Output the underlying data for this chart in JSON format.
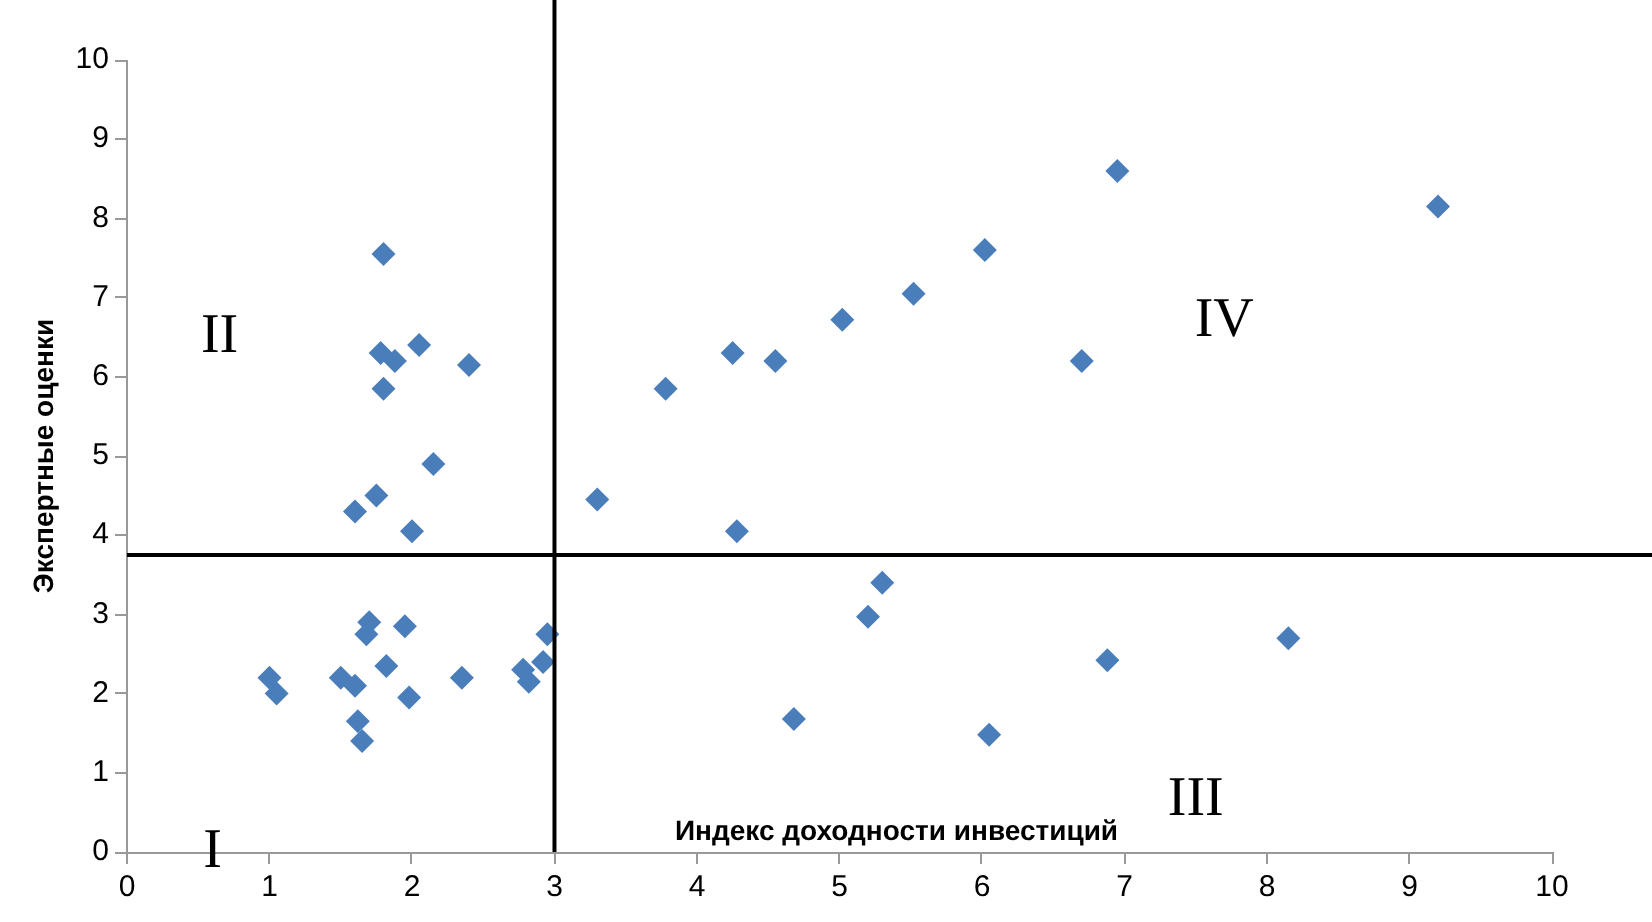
{
  "chart_data": {
    "type": "scatter",
    "xlabel": "Индекс доходности инвестиций",
    "ylabel": "Экспертные оценки",
    "xlim": [
      0,
      10
    ],
    "ylim": [
      0,
      10
    ],
    "xticks": [
      0,
      1,
      2,
      3,
      4,
      5,
      6,
      7,
      8,
      9,
      10
    ],
    "yticks": [
      0,
      1,
      2,
      3,
      4,
      5,
      6,
      7,
      8,
      9,
      10
    ],
    "grid": false,
    "legend": false,
    "marker": "diamond",
    "series": [
      {
        "color": "#4a7ebb",
        "x": [
          1.8,
          1.78,
          1.88,
          2.05,
          2.4,
          1.8,
          2.15,
          1.75,
          1.6,
          2.0,
          1.0,
          1.05,
          1.5,
          1.6,
          1.62,
          1.65,
          1.7,
          1.68,
          1.82,
          1.95,
          1.98,
          2.35,
          2.78,
          2.82,
          2.92,
          2.95,
          3.3,
          3.78,
          4.25,
          4.55,
          4.28,
          5.02,
          5.52,
          6.02,
          6.95,
          6.7,
          9.2,
          5.3,
          5.2,
          4.68,
          6.05,
          6.88,
          8.15
        ],
        "values": [
          7.55,
          6.3,
          6.2,
          6.4,
          6.15,
          5.85,
          4.9,
          4.5,
          4.3,
          4.05,
          2.2,
          2.0,
          2.2,
          2.1,
          1.65,
          1.4,
          2.9,
          2.75,
          2.35,
          2.85,
          1.95,
          2.2,
          2.3,
          2.15,
          2.4,
          2.75,
          4.45,
          5.85,
          6.3,
          6.2,
          4.05,
          6.72,
          7.05,
          7.6,
          8.6,
          6.2,
          8.15,
          3.4,
          2.97,
          1.68,
          1.48,
          2.42,
          2.7
        ]
      }
    ],
    "ref_lines": [
      {
        "axis": "x",
        "value": 3.0,
        "color": "#000000"
      },
      {
        "axis": "y",
        "value": 3.75,
        "color": "#000000"
      }
    ],
    "annotations": [
      "I",
      "II",
      "III",
      "IV"
    ]
  }
}
